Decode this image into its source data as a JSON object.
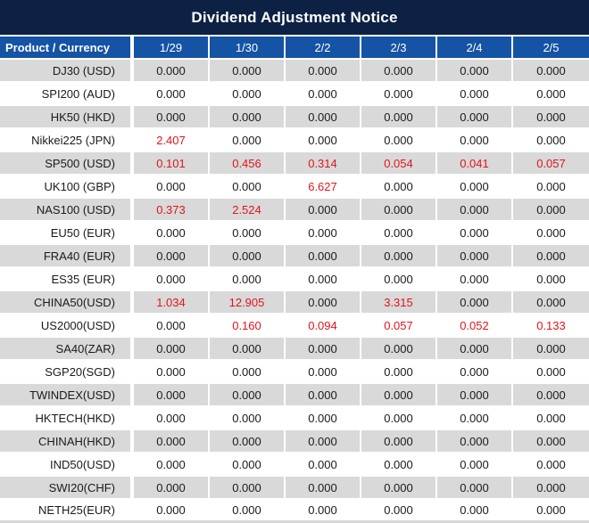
{
  "title": "Dividend Adjustment Notice",
  "colors": {
    "title_bar_bg": "#0d2145",
    "header_bg": "#1553a4",
    "row_alt_bg": "#d9d9d9",
    "text_color": "#1a1a1a",
    "highlight_value_color": "#e1151b"
  },
  "table": {
    "product_header": "Product / Currency",
    "date_columns": [
      "1/29",
      "1/30",
      "2/2",
      "2/3",
      "2/4",
      "2/5"
    ],
    "rows": [
      {
        "product": "DJ30 (USD)",
        "values": [
          "0.000",
          "0.000",
          "0.000",
          "0.000",
          "0.000",
          "0.000"
        ],
        "red_columns": []
      },
      {
        "product": "SPI200 (AUD)",
        "values": [
          "0.000",
          "0.000",
          "0.000",
          "0.000",
          "0.000",
          "0.000"
        ],
        "red_columns": []
      },
      {
        "product": "HK50 (HKD)",
        "values": [
          "0.000",
          "0.000",
          "0.000",
          "0.000",
          "0.000",
          "0.000"
        ],
        "red_columns": []
      },
      {
        "product": "Nikkei225 (JPN)",
        "values": [
          "2.407",
          "0.000",
          "0.000",
          "0.000",
          "0.000",
          "0.000"
        ],
        "red_columns": [
          0
        ]
      },
      {
        "product": "SP500 (USD)",
        "values": [
          "0.101",
          "0.456",
          "0.314",
          "0.054",
          "0.041",
          "0.057"
        ],
        "red_columns": [
          0,
          1,
          2,
          3,
          4,
          5
        ]
      },
      {
        "product": "UK100 (GBP)",
        "values": [
          "0.000",
          "0.000",
          "6.627",
          "0.000",
          "0.000",
          "0.000"
        ],
        "red_columns": [
          2
        ]
      },
      {
        "product": "NAS100 (USD)",
        "values": [
          "0.373",
          "2.524",
          "0.000",
          "0.000",
          "0.000",
          "0.000"
        ],
        "red_columns": [
          0,
          1
        ]
      },
      {
        "product": "EU50 (EUR)",
        "values": [
          "0.000",
          "0.000",
          "0.000",
          "0.000",
          "0.000",
          "0.000"
        ],
        "red_columns": []
      },
      {
        "product": "FRA40 (EUR)",
        "values": [
          "0.000",
          "0.000",
          "0.000",
          "0.000",
          "0.000",
          "0.000"
        ],
        "red_columns": []
      },
      {
        "product": "ES35 (EUR)",
        "values": [
          "0.000",
          "0.000",
          "0.000",
          "0.000",
          "0.000",
          "0.000"
        ],
        "red_columns": []
      },
      {
        "product": "CHINA50(USD)",
        "values": [
          "1.034",
          "12.905",
          "0.000",
          "3.315",
          "0.000",
          "0.000"
        ],
        "red_columns": [
          0,
          1,
          3
        ]
      },
      {
        "product": "US2000(USD)",
        "values": [
          "0.000",
          "0.160",
          "0.094",
          "0.057",
          "0.052",
          "0.133"
        ],
        "red_columns": [
          1,
          2,
          3,
          4,
          5
        ]
      },
      {
        "product": "SA40(ZAR)",
        "values": [
          "0.000",
          "0.000",
          "0.000",
          "0.000",
          "0.000",
          "0.000"
        ],
        "red_columns": []
      },
      {
        "product": "SGP20(SGD)",
        "values": [
          "0.000",
          "0.000",
          "0.000",
          "0.000",
          "0.000",
          "0.000"
        ],
        "red_columns": []
      },
      {
        "product": "TWINDEX(USD)",
        "values": [
          "0.000",
          "0.000",
          "0.000",
          "0.000",
          "0.000",
          "0.000"
        ],
        "red_columns": []
      },
      {
        "product": "HKTECH(HKD)",
        "values": [
          "0.000",
          "0.000",
          "0.000",
          "0.000",
          "0.000",
          "0.000"
        ],
        "red_columns": []
      },
      {
        "product": "CHINAH(HKD)",
        "values": [
          "0.000",
          "0.000",
          "0.000",
          "0.000",
          "0.000",
          "0.000"
        ],
        "red_columns": []
      },
      {
        "product": "IND50(USD)",
        "values": [
          "0.000",
          "0.000",
          "0.000",
          "0.000",
          "0.000",
          "0.000"
        ],
        "red_columns": []
      },
      {
        "product": "SWI20(CHF)",
        "values": [
          "0.000",
          "0.000",
          "0.000",
          "0.000",
          "0.000",
          "0.000"
        ],
        "red_columns": []
      },
      {
        "product": "NETH25(EUR)",
        "values": [
          "0.000",
          "0.000",
          "0.000",
          "0.000",
          "0.000",
          "0.000"
        ],
        "red_columns": []
      }
    ]
  }
}
